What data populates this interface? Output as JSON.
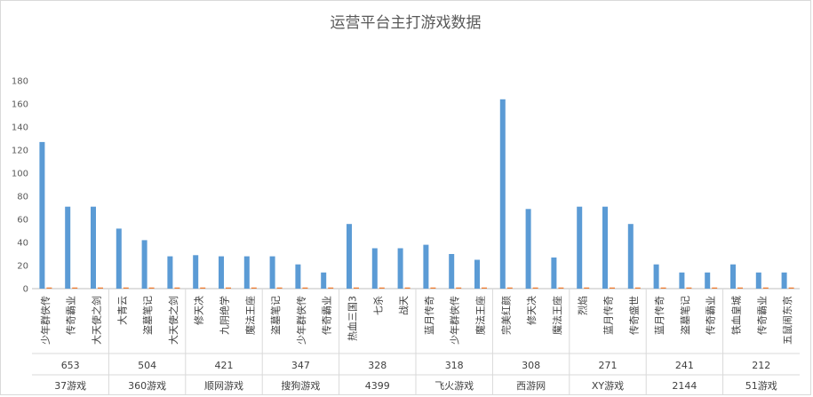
{
  "chart_data": {
    "type": "bar",
    "title": "运营平台主打游戏数据",
    "ylim": [
      0,
      180
    ],
    "yticks": [
      0,
      20,
      40,
      60,
      80,
      100,
      120,
      140,
      160,
      180
    ],
    "grid": false,
    "colors": {
      "primary": "#5b9bd5",
      "secondary": "#ed7d31"
    },
    "groups": [
      {
        "platform": "37游戏",
        "total": "653",
        "games": [
          "少年群侠传",
          "传奇霸业",
          "大天使之剑"
        ]
      },
      {
        "platform": "360游戏",
        "total": "504",
        "games": [
          "大青云",
          "盗墓笔记",
          "大天使之剑"
        ]
      },
      {
        "platform": "顺网游戏",
        "total": "421",
        "games": [
          "修天决",
          "九阴绝学",
          "魔法王座"
        ]
      },
      {
        "platform": "搜狗游戏",
        "total": "347",
        "games": [
          "盗墓笔记",
          "少年群侠传",
          "传奇霸业"
        ]
      },
      {
        "platform": "4399",
        "total": "328",
        "games": [
          "热血三国3",
          "七杀",
          "战天"
        ]
      },
      {
        "platform": "飞火游戏",
        "total": "318",
        "games": [
          "蓝月传奇",
          "少年群侠传",
          "魔法王座"
        ]
      },
      {
        "platform": "西游网",
        "total": "308",
        "games": [
          "完美红颜",
          "修天决",
          "魔法王座"
        ]
      },
      {
        "platform": "XY游戏",
        "total": "271",
        "games": [
          "烈焰",
          "蓝月传奇",
          "传奇盛世"
        ]
      },
      {
        "platform": "2144",
        "total": "241",
        "games": [
          "蓝月传奇",
          "盗墓笔记",
          "传奇霸业"
        ]
      },
      {
        "platform": "51游戏",
        "total": "212",
        "games": [
          "铁血皇城",
          "传奇霸业",
          "五鼠闹东京"
        ]
      }
    ],
    "series": [
      {
        "values": [
          127,
          71,
          71,
          52,
          42,
          28,
          29,
          28,
          28,
          28,
          21,
          14,
          56,
          35,
          35,
          38,
          30,
          25,
          164,
          69,
          27,
          71,
          71,
          56,
          21,
          14,
          14,
          21,
          14,
          14
        ]
      },
      {
        "values": [
          1,
          1,
          1,
          1,
          1,
          1,
          1,
          1,
          1,
          1,
          1,
          1,
          1,
          1,
          1,
          1,
          1,
          1,
          1,
          1,
          1,
          1,
          1,
          1,
          1,
          1,
          1,
          1,
          1,
          1
        ]
      }
    ]
  }
}
